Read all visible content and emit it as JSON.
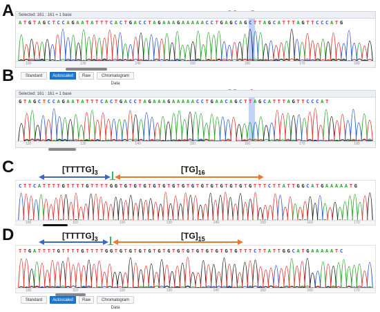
{
  "panels": [
    {
      "letter": "A",
      "selected": "Selected:  161 : 161 = 1 base",
      "callout": "g88 = G",
      "sequence": "ATGTAGCTCCAGAATATTTCACTGACCTAGAAAGAAAAACCTGAGCAGCTTAGCATTTAGTTCCCATG",
      "ticks": [
        "120",
        "130",
        "140",
        "150",
        "160",
        "170",
        "180"
      ],
      "toolbar": [
        "Standard",
        "Autoscaled",
        "Raw",
        "Chromatogram Data"
      ],
      "active": "Autoscaled"
    },
    {
      "letter": "B",
      "selected": "Selected:  161 : 161 = 1 base",
      "callout": "g88 = A",
      "sequence": "GTAGCTCCAGAATATTTCACTGACCTAGAAAGAAAAACCTGAACAGCTTAGCATTTAGTTCCCAT",
      "ticks": [
        "120",
        "130",
        "140",
        "150",
        "160",
        "170",
        "180"
      ]
    },
    {
      "letter": "C",
      "sequence": "CTTCATTTTGTTTTGTTTTGGTGTGTGTGTGTGTGTGTGTGTGTGTGTGTTTCTTATTGGCATGAAAAATG",
      "ticks": [
        "100",
        "110",
        "120",
        "130",
        "140",
        "150",
        "160",
        "170"
      ],
      "left_motif": {
        "base": "[TTTTG]",
        "sub": "3"
      },
      "right_motif": {
        "base": "[TG]",
        "sub": "16"
      }
    },
    {
      "letter": "D",
      "sequence": "TTGATTTTGTTTTGTTTTGGTGTGTGTGTGTGTGTGTGTGTGTGTGTTTCTTATTGGCATGAAAAATC",
      "ticks": [
        "100",
        "110",
        "120",
        "130",
        "140",
        "150",
        "160",
        "170"
      ],
      "left_motif": {
        "base": "[TTTTG]",
        "sub": "3"
      },
      "right_motif": {
        "base": "[TG]",
        "sub": "15"
      },
      "toolbar": [
        "Standard",
        "Autoscaled",
        "Raw",
        "Chromatogram Data"
      ],
      "active": "Autoscaled"
    }
  ],
  "colors": {
    "A": "#2aa52a",
    "C": "#2b57d4",
    "G": "#222222",
    "T": "#e3342f",
    "blue_arrow": "#3e64c8",
    "orange_arrow": "#e8782c",
    "green_arrow": "#37b36b"
  }
}
